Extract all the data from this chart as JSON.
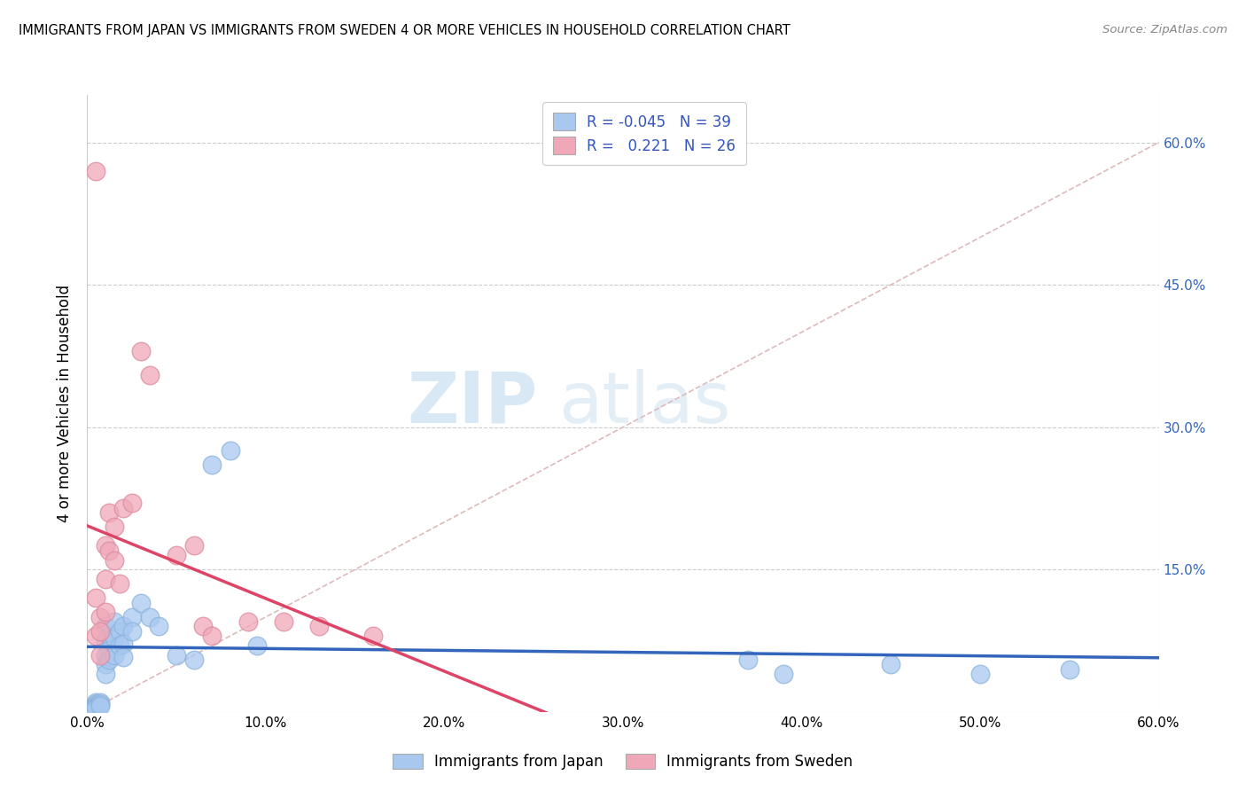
{
  "title": "IMMIGRANTS FROM JAPAN VS IMMIGRANTS FROM SWEDEN 4 OR MORE VEHICLES IN HOUSEHOLD CORRELATION CHART",
  "source": "Source: ZipAtlas.com",
  "xlabel_japan": "Immigrants from Japan",
  "xlabel_sweden": "Immigrants from Sweden",
  "ylabel": "4 or more Vehicles in Household",
  "xlim": [
    0.0,
    0.6
  ],
  "ylim": [
    0.0,
    0.65
  ],
  "xticks": [
    0.0,
    0.1,
    0.2,
    0.3,
    0.4,
    0.5,
    0.6
  ],
  "yticks": [
    0.0,
    0.15,
    0.3,
    0.45,
    0.6
  ],
  "ytick_labels_left": [
    "",
    "",
    "",
    "",
    ""
  ],
  "xtick_labels": [
    "0.0%",
    "10.0%",
    "20.0%",
    "30.0%",
    "40.0%",
    "50.0%",
    "60.0%"
  ],
  "right_ytick_labels": [
    "15.0%",
    "30.0%",
    "45.0%",
    "60.0%"
  ],
  "right_ytick_positions": [
    0.15,
    0.3,
    0.45,
    0.6
  ],
  "legend_r_japan": "-0.045",
  "legend_n_japan": "39",
  "legend_r_sweden": "0.221",
  "legend_n_sweden": "26",
  "color_japan": "#a8c8f0",
  "color_sweden": "#f0a8b8",
  "line_color_japan": "#3366bb",
  "line_color_sweden": "#dd4466",
  "diag_line_color": "#ddbbbb",
  "watermark_zip": "ZIP",
  "watermark_atlas": "atlas",
  "japan_x": [
    0.005,
    0.005,
    0.005,
    0.005,
    0.005,
    0.007,
    0.007,
    0.007,
    0.01,
    0.01,
    0.01,
    0.01,
    0.01,
    0.012,
    0.012,
    0.012,
    0.015,
    0.015,
    0.015,
    0.018,
    0.018,
    0.02,
    0.02,
    0.02,
    0.025,
    0.025,
    0.03,
    0.035,
    0.04,
    0.05,
    0.06,
    0.07,
    0.08,
    0.095,
    0.37,
    0.39,
    0.45,
    0.5,
    0.55
  ],
  "japan_y": [
    0.01,
    0.008,
    0.006,
    0.005,
    0.004,
    0.01,
    0.008,
    0.006,
    0.09,
    0.075,
    0.06,
    0.05,
    0.04,
    0.08,
    0.065,
    0.055,
    0.095,
    0.078,
    0.06,
    0.085,
    0.07,
    0.09,
    0.072,
    0.058,
    0.1,
    0.085,
    0.115,
    0.1,
    0.09,
    0.06,
    0.055,
    0.26,
    0.275,
    0.07,
    0.055,
    0.04,
    0.05,
    0.04,
    0.045
  ],
  "sweden_x": [
    0.005,
    0.005,
    0.005,
    0.007,
    0.007,
    0.007,
    0.01,
    0.01,
    0.01,
    0.012,
    0.012,
    0.015,
    0.015,
    0.018,
    0.02,
    0.025,
    0.03,
    0.035,
    0.05,
    0.06,
    0.065,
    0.07,
    0.09,
    0.11,
    0.13,
    0.16
  ],
  "sweden_y": [
    0.57,
    0.12,
    0.08,
    0.1,
    0.085,
    0.06,
    0.175,
    0.14,
    0.105,
    0.21,
    0.17,
    0.195,
    0.16,
    0.135,
    0.215,
    0.22,
    0.38,
    0.355,
    0.165,
    0.175,
    0.09,
    0.08,
    0.095,
    0.095,
    0.09,
    0.08
  ]
}
